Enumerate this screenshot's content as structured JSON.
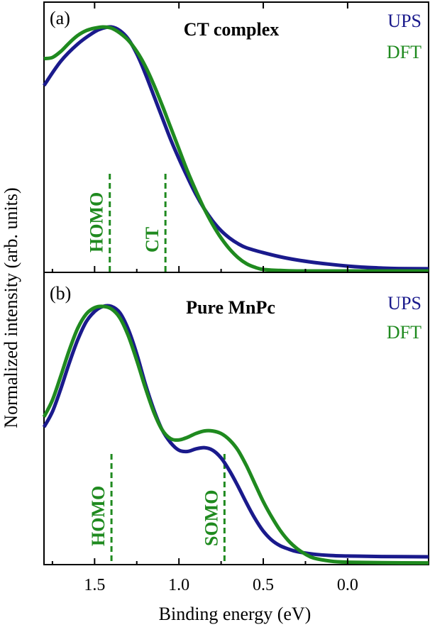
{
  "colors": {
    "ups": "#1a1a8c",
    "dft": "#1f8a1f",
    "axis": "#000000"
  },
  "xlabel": "Binding energy (eV)",
  "ylabel": "Normalized intensity (arb. units)",
  "chart_data": [
    {
      "type": "line",
      "panel_label": "(a)",
      "title": "CT complex",
      "xlim": [
        1.8,
        -0.48
      ],
      "x_reversed": true,
      "ylim": [
        0,
        1.05
      ],
      "xticks": [
        "1.5",
        "1.0",
        "0.5",
        "0.0"
      ],
      "xtick_values": [
        1.5,
        1.0,
        0.5,
        0.0
      ],
      "legend_position": "top-right",
      "series": [
        {
          "name": "UPS",
          "color": "#1a1a8c",
          "x": [
            1.8,
            1.7,
            1.6,
            1.5,
            1.45,
            1.4,
            1.35,
            1.3,
            1.25,
            1.2,
            1.15,
            1.1,
            1.05,
            1.0,
            0.95,
            0.9,
            0.85,
            0.8,
            0.75,
            0.7,
            0.65,
            0.6,
            0.5,
            0.4,
            0.3,
            0.2,
            0.1,
            0.0,
            -0.1,
            -0.2,
            -0.3,
            -0.48
          ],
          "y": [
            0.76,
            0.86,
            0.93,
            0.98,
            0.995,
            1.0,
            0.985,
            0.95,
            0.89,
            0.81,
            0.72,
            0.63,
            0.54,
            0.46,
            0.385,
            0.315,
            0.255,
            0.205,
            0.165,
            0.135,
            0.112,
            0.095,
            0.075,
            0.058,
            0.045,
            0.035,
            0.027,
            0.02,
            0.015,
            0.012,
            0.01,
            0.009
          ]
        },
        {
          "name": "DFT",
          "color": "#1f8a1f",
          "x": [
            1.8,
            1.75,
            1.7,
            1.65,
            1.6,
            1.55,
            1.5,
            1.45,
            1.4,
            1.35,
            1.3,
            1.25,
            1.2,
            1.15,
            1.1,
            1.05,
            1.0,
            0.95,
            0.9,
            0.85,
            0.8,
            0.75,
            0.7,
            0.65,
            0.6,
            0.55,
            0.5,
            0.4,
            0.3,
            0.2,
            0.1,
            0.0,
            -0.2,
            -0.48
          ],
          "y": [
            0.87,
            0.875,
            0.9,
            0.935,
            0.965,
            0.985,
            0.995,
            1.0,
            0.995,
            0.975,
            0.945,
            0.9,
            0.84,
            0.765,
            0.68,
            0.59,
            0.5,
            0.41,
            0.33,
            0.255,
            0.19,
            0.135,
            0.09,
            0.055,
            0.03,
            0.015,
            0.006,
            0.002,
            0.0,
            0.0,
            0.0,
            0.0,
            0.0,
            0.0
          ]
        }
      ],
      "markers": [
        {
          "label": "HOMO",
          "x": 1.41,
          "color": "#1f8a1f"
        },
        {
          "label": "CT",
          "x": 1.08,
          "color": "#1f8a1f"
        }
      ]
    },
    {
      "type": "line",
      "panel_label": "(b)",
      "title": "Pure MnPc",
      "xlim": [
        1.8,
        -0.48
      ],
      "x_reversed": true,
      "ylim": [
        0,
        1.05
      ],
      "xticks": [
        "1.5",
        "1.0",
        "0.5",
        "0.0"
      ],
      "xtick_values": [
        1.5,
        1.0,
        0.5,
        0.0
      ],
      "legend_position": "top-right",
      "series": [
        {
          "name": "UPS",
          "color": "#1a1a8c",
          "x": [
            1.8,
            1.75,
            1.7,
            1.65,
            1.6,
            1.55,
            1.5,
            1.45,
            1.4,
            1.35,
            1.3,
            1.25,
            1.2,
            1.15,
            1.1,
            1.05,
            1.0,
            0.95,
            0.9,
            0.85,
            0.8,
            0.75,
            0.7,
            0.65,
            0.6,
            0.55,
            0.5,
            0.45,
            0.4,
            0.35,
            0.3,
            0.2,
            0.1,
            0.0,
            -0.2,
            -0.48
          ],
          "y": [
            0.53,
            0.59,
            0.68,
            0.78,
            0.87,
            0.94,
            0.98,
            1.0,
            1.0,
            0.975,
            0.91,
            0.815,
            0.7,
            0.6,
            0.52,
            0.47,
            0.44,
            0.435,
            0.445,
            0.45,
            0.44,
            0.41,
            0.36,
            0.3,
            0.235,
            0.175,
            0.125,
            0.09,
            0.068,
            0.055,
            0.045,
            0.035,
            0.03,
            0.028,
            0.026,
            0.025
          ]
        },
        {
          "name": "DFT",
          "color": "#1f8a1f",
          "x": [
            1.8,
            1.75,
            1.7,
            1.65,
            1.6,
            1.55,
            1.5,
            1.45,
            1.4,
            1.35,
            1.3,
            1.25,
            1.2,
            1.15,
            1.1,
            1.05,
            1.0,
            0.95,
            0.9,
            0.85,
            0.8,
            0.75,
            0.7,
            0.65,
            0.6,
            0.55,
            0.5,
            0.45,
            0.4,
            0.35,
            0.3,
            0.25,
            0.2,
            0.1,
            0.0,
            -0.2,
            -0.48
          ],
          "y": [
            0.57,
            0.635,
            0.73,
            0.83,
            0.915,
            0.97,
            0.995,
            1.0,
            0.99,
            0.955,
            0.885,
            0.79,
            0.685,
            0.59,
            0.52,
            0.485,
            0.48,
            0.49,
            0.505,
            0.515,
            0.515,
            0.505,
            0.48,
            0.44,
            0.38,
            0.31,
            0.24,
            0.18,
            0.128,
            0.087,
            0.057,
            0.035,
            0.02,
            0.008,
            0.004,
            0.002,
            0.001
          ]
        }
      ],
      "markers": [
        {
          "label": "HOMO",
          "x": 1.4,
          "color": "#1f8a1f"
        },
        {
          "label": "SOMO",
          "x": 0.73,
          "color": "#1f8a1f"
        }
      ]
    }
  ]
}
